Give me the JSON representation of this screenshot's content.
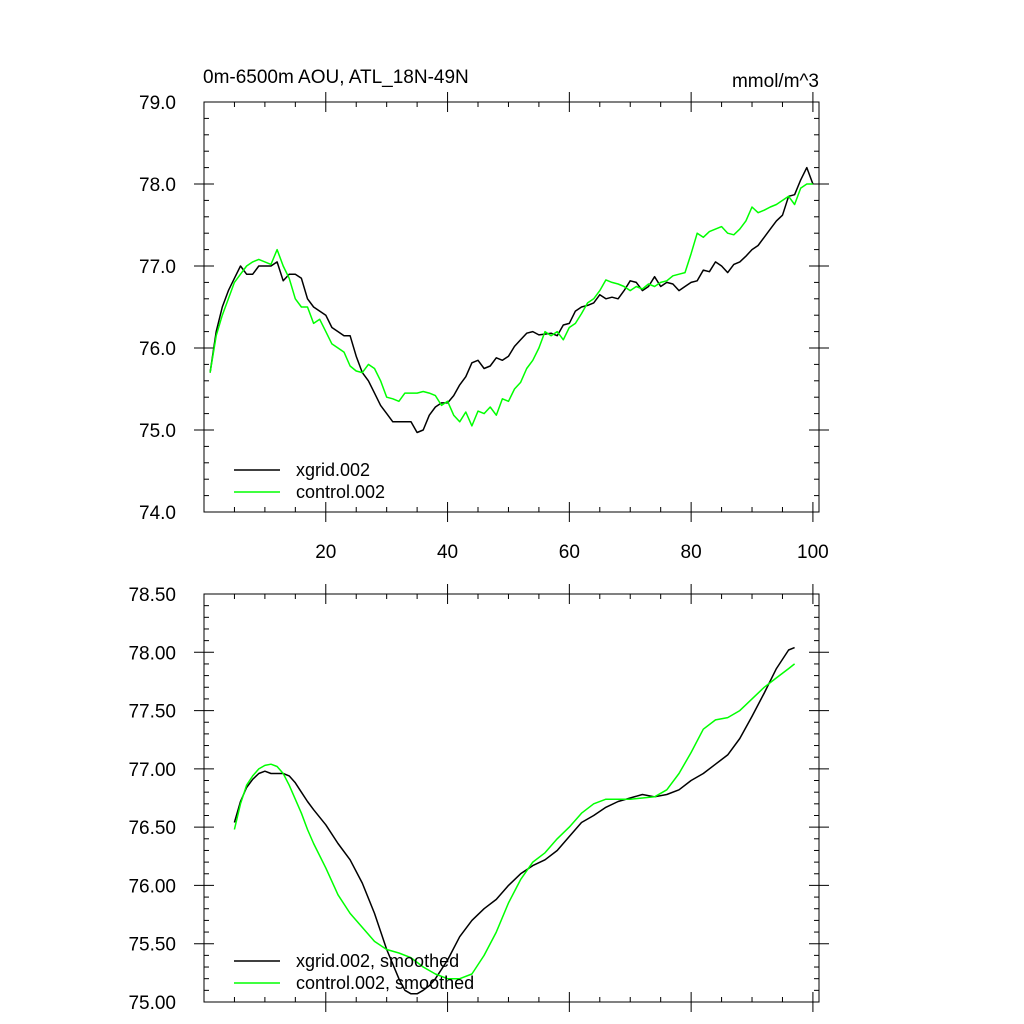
{
  "chart_data": [
    {
      "type": "line",
      "title": "0m-6500m AOU, ATL_18N-49N",
      "units": "mmol/m^3",
      "xlabel": "",
      "ylabel": "",
      "xlim": [
        0,
        101
      ],
      "ylim": [
        74.0,
        79.0
      ],
      "xticks": [
        20,
        40,
        60,
        80,
        100
      ],
      "xtick_labels": [
        "20",
        "40",
        "60",
        "80",
        "100"
      ],
      "yticks": [
        74.0,
        75.0,
        76.0,
        77.0,
        78.0,
        79.0
      ],
      "ytick_labels": [
        "74.0",
        "75.0",
        "76.0",
        "77.0",
        "78.0",
        "79.0"
      ],
      "legend_position": "bottom-left",
      "series": [
        {
          "name": "xgrid.002",
          "color": "#000000",
          "x": [
            1,
            2,
            3,
            4,
            5,
            6,
            7,
            8,
            9,
            10,
            11,
            12,
            13,
            14,
            15,
            16,
            17,
            18,
            19,
            20,
            21,
            22,
            23,
            24,
            25,
            26,
            27,
            28,
            29,
            30,
            31,
            32,
            33,
            34,
            35,
            36,
            37,
            38,
            39,
            40,
            41,
            42,
            43,
            44,
            45,
            46,
            47,
            48,
            49,
            50,
            51,
            52,
            53,
            54,
            55,
            56,
            57,
            58,
            59,
            60,
            61,
            62,
            63,
            64,
            65,
            66,
            67,
            68,
            69,
            70,
            71,
            72,
            73,
            74,
            75,
            76,
            77,
            78,
            79,
            80,
            81,
            82,
            83,
            84,
            85,
            86,
            87,
            88,
            89,
            90,
            91,
            92,
            93,
            94,
            95,
            96,
            97,
            98,
            99,
            100
          ],
          "values": [
            75.7,
            76.2,
            76.5,
            76.7,
            76.85,
            77.0,
            76.9,
            76.9,
            77.0,
            77.0,
            77.0,
            77.05,
            76.82,
            76.9,
            76.9,
            76.85,
            76.6,
            76.5,
            76.45,
            76.4,
            76.25,
            76.2,
            76.15,
            76.15,
            75.9,
            75.7,
            75.6,
            75.45,
            75.3,
            75.2,
            75.1,
            75.1,
            75.1,
            75.1,
            74.97,
            75.0,
            75.18,
            75.28,
            75.33,
            75.33,
            75.42,
            75.55,
            75.65,
            75.82,
            75.85,
            75.75,
            75.78,
            75.88,
            75.85,
            75.9,
            76.02,
            76.1,
            76.18,
            76.2,
            76.16,
            76.17,
            76.18,
            76.15,
            76.28,
            76.3,
            76.45,
            76.5,
            76.52,
            76.55,
            76.65,
            76.6,
            76.62,
            76.6,
            76.7,
            76.82,
            76.8,
            76.7,
            76.75,
            76.87,
            76.75,
            76.8,
            76.78,
            76.7,
            76.75,
            76.8,
            76.82,
            76.95,
            76.93,
            77.05,
            77.0,
            76.92,
            77.02,
            77.05,
            77.12,
            77.2,
            77.25,
            77.35,
            77.45,
            77.55,
            77.62,
            77.85,
            77.87,
            78.05,
            78.2,
            78.0
          ],
          "smoothed": false
        },
        {
          "name": "control.002",
          "color": "#00ff00",
          "x": [
            1,
            2,
            3,
            4,
            5,
            6,
            7,
            8,
            9,
            10,
            11,
            12,
            13,
            14,
            15,
            16,
            17,
            18,
            19,
            20,
            21,
            22,
            23,
            24,
            25,
            26,
            27,
            28,
            29,
            30,
            31,
            32,
            33,
            34,
            35,
            36,
            37,
            38,
            39,
            40,
            41,
            42,
            43,
            44,
            45,
            46,
            47,
            48,
            49,
            50,
            51,
            52,
            53,
            54,
            55,
            56,
            57,
            58,
            59,
            60,
            61,
            62,
            63,
            64,
            65,
            66,
            67,
            68,
            69,
            70,
            71,
            72,
            73,
            74,
            75,
            76,
            77,
            78,
            79,
            80,
            81,
            82,
            83,
            84,
            85,
            86,
            87,
            88,
            89,
            90,
            91,
            92,
            93,
            94,
            95,
            96,
            97,
            98,
            99,
            100
          ],
          "values": [
            75.7,
            76.15,
            76.4,
            76.6,
            76.8,
            76.9,
            77.0,
            77.05,
            77.08,
            77.05,
            77.02,
            77.2,
            77.0,
            76.85,
            76.6,
            76.5,
            76.5,
            76.3,
            76.35,
            76.2,
            76.05,
            76.0,
            75.95,
            75.78,
            75.72,
            75.7,
            75.8,
            75.75,
            75.6,
            75.4,
            75.38,
            75.35,
            75.45,
            75.45,
            75.45,
            75.47,
            75.45,
            75.42,
            75.3,
            75.35,
            75.18,
            75.1,
            75.22,
            75.05,
            75.23,
            75.2,
            75.28,
            75.18,
            75.38,
            75.35,
            75.5,
            75.58,
            75.75,
            75.85,
            76.0,
            76.2,
            76.15,
            76.2,
            76.1,
            76.25,
            76.3,
            76.42,
            76.55,
            76.6,
            76.7,
            76.83,
            76.8,
            76.78,
            76.75,
            76.7,
            76.75,
            76.72,
            76.78,
            76.75,
            76.8,
            76.82,
            76.88,
            76.9,
            76.92,
            77.15,
            77.4,
            77.35,
            77.42,
            77.45,
            77.48,
            77.4,
            77.38,
            77.45,
            77.55,
            77.72,
            77.65,
            77.68,
            77.72,
            77.75,
            77.8,
            77.85,
            77.75,
            77.95,
            78.0,
            78.0
          ],
          "smoothed": false
        }
      ]
    },
    {
      "type": "line",
      "title": "",
      "xlabel": "",
      "ylabel": "",
      "xlim": [
        0,
        101
      ],
      "ylim": [
        75.0,
        78.5
      ],
      "xticks": [
        20,
        40,
        60,
        80,
        100
      ],
      "xtick_labels": [],
      "yticks": [
        75.0,
        75.5,
        76.0,
        76.5,
        77.0,
        77.5,
        78.0,
        78.5
      ],
      "ytick_labels": [
        "75.00",
        "75.50",
        "76.00",
        "76.50",
        "77.00",
        "77.50",
        "78.00",
        "78.50"
      ],
      "legend_position": "bottom-left",
      "series": [
        {
          "name": "xgrid.002, smoothed",
          "color": "#000000",
          "x": [
            5,
            6,
            7,
            8,
            9,
            10,
            11,
            12,
            13,
            14,
            15,
            16,
            17,
            18,
            20,
            22,
            24,
            26,
            28,
            30,
            32,
            33,
            34,
            35,
            36,
            37,
            38,
            40,
            42,
            44,
            46,
            48,
            50,
            52,
            54,
            56,
            58,
            60,
            62,
            64,
            66,
            68,
            70,
            72,
            74,
            76,
            78,
            80,
            82,
            84,
            86,
            88,
            90,
            92,
            94,
            96,
            97
          ],
          "values": [
            76.54,
            76.72,
            76.84,
            76.91,
            76.96,
            76.98,
            76.96,
            76.96,
            76.96,
            76.94,
            76.88,
            76.8,
            76.72,
            76.65,
            76.52,
            76.36,
            76.22,
            76.02,
            75.76,
            75.45,
            75.2,
            75.1,
            75.07,
            75.07,
            75.1,
            75.14,
            75.2,
            75.36,
            75.56,
            75.7,
            75.8,
            75.88,
            76.0,
            76.1,
            76.17,
            76.22,
            76.3,
            76.42,
            76.54,
            76.6,
            76.67,
            76.72,
            76.75,
            76.78,
            76.76,
            76.78,
            76.82,
            76.9,
            76.96,
            77.04,
            77.12,
            77.26,
            77.45,
            77.65,
            77.86,
            78.02,
            78.04
          ],
          "smoothed": true
        },
        {
          "name": "control.002, smoothed",
          "color": "#00ff00",
          "x": [
            5,
            6,
            7,
            8,
            9,
            10,
            11,
            12,
            13,
            14,
            15,
            16,
            17,
            18,
            20,
            22,
            24,
            26,
            28,
            30,
            32,
            34,
            36,
            38,
            40,
            42,
            44,
            46,
            48,
            50,
            52,
            54,
            56,
            58,
            60,
            62,
            64,
            66,
            68,
            70,
            72,
            74,
            76,
            78,
            80,
            82,
            84,
            86,
            88,
            90,
            92,
            94,
            96,
            97
          ],
          "values": [
            76.48,
            76.7,
            76.86,
            76.94,
            77.0,
            77.03,
            77.04,
            77.02,
            76.96,
            76.86,
            76.74,
            76.62,
            76.48,
            76.36,
            76.15,
            75.92,
            75.76,
            75.64,
            75.52,
            75.45,
            75.42,
            75.38,
            75.3,
            75.24,
            75.2,
            75.2,
            75.24,
            75.4,
            75.6,
            75.85,
            76.05,
            76.2,
            76.28,
            76.4,
            76.5,
            76.62,
            76.7,
            76.74,
            76.74,
            76.74,
            76.75,
            76.76,
            76.82,
            76.96,
            77.14,
            77.34,
            77.42,
            77.44,
            77.5,
            77.6,
            77.7,
            77.78,
            77.86,
            77.9
          ],
          "smoothed": true
        }
      ]
    }
  ]
}
